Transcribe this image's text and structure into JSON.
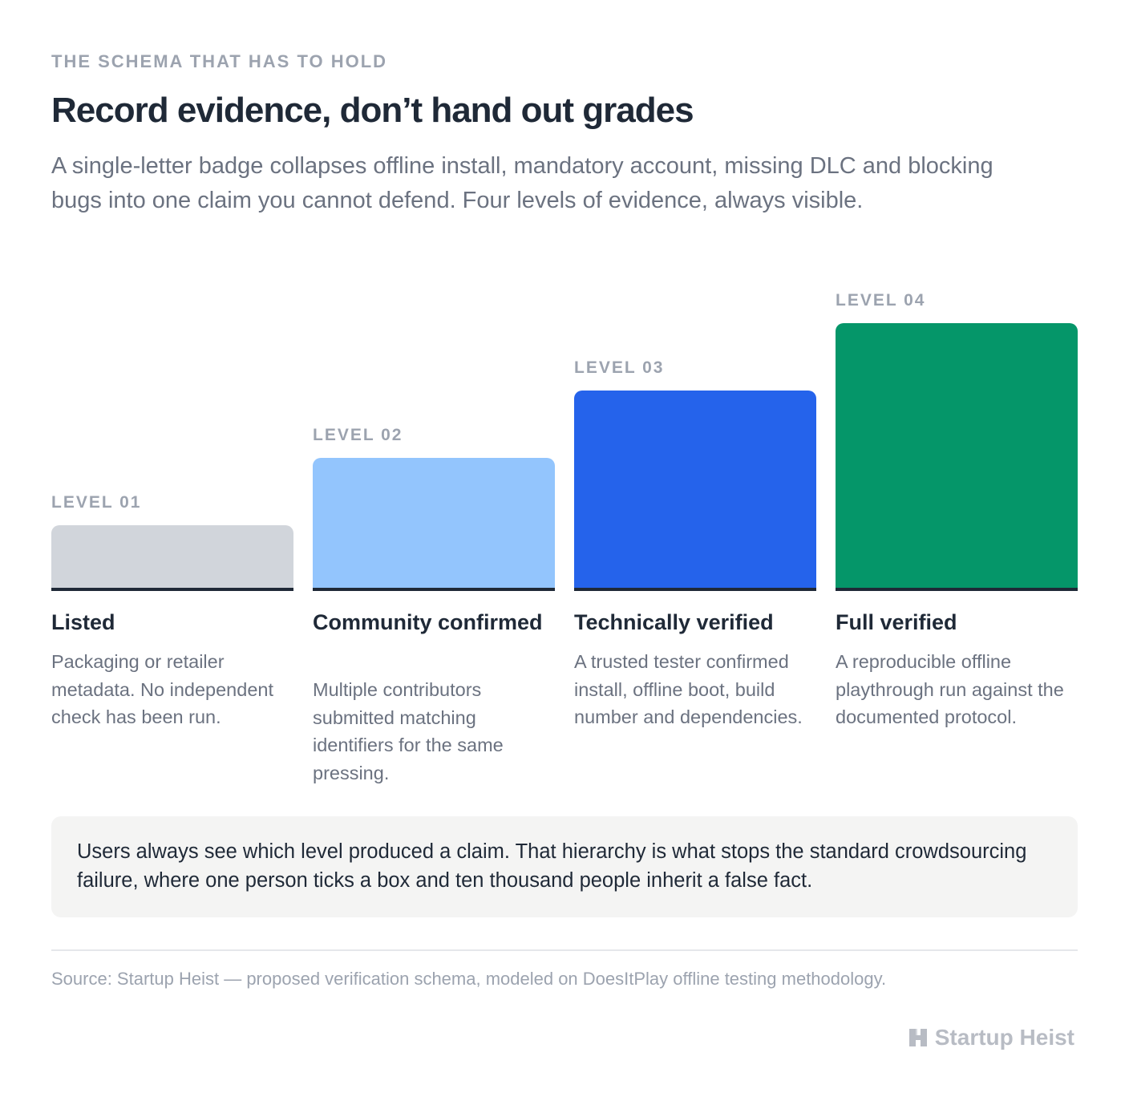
{
  "header": {
    "eyebrow": "THE SCHEMA THAT HAS TO HOLD",
    "title": "Record evidence, don’t hand out grades",
    "lede": "A single-letter badge collapses offline install, mandatory account, missing DLC and blocking bugs into one claim you cannot defend. Four levels of evidence, always visible."
  },
  "levels": [
    {
      "level": "LEVEL 01",
      "name": "Listed",
      "description": "Packaging or retailer metadata. No independent check has been run.",
      "rank": 1,
      "color": "#d1d5db"
    },
    {
      "level": "LEVEL 02",
      "name": "Community confirmed",
      "description": "Multiple contributors submitted matching identifiers for the same pressing.",
      "rank": 2,
      "color": "#93c5fd"
    },
    {
      "level": "LEVEL 03",
      "name": "Technically verified",
      "description": "A trusted tester confirmed install, offline boot, build number and dependencies.",
      "rank": 3,
      "color": "#2563eb"
    },
    {
      "level": "LEVEL 04",
      "name": "Full verified",
      "description": "A reproducible offline playthrough run against the documented protocol.",
      "rank": 4,
      "color": "#059669"
    }
  ],
  "callout": {
    "text": "Users always see which level produced a claim. That hierarchy is what stops the standard crowdsourcing failure, where one person ticks a box and ten thousand people inherit a false fact."
  },
  "footer": {
    "source": "Source: Startup Heist — proposed verification schema, modeled on DoesItPlay offline testing methodology.",
    "brand": "Startup Heist",
    "brand_icon": "heist-logo-icon"
  }
}
